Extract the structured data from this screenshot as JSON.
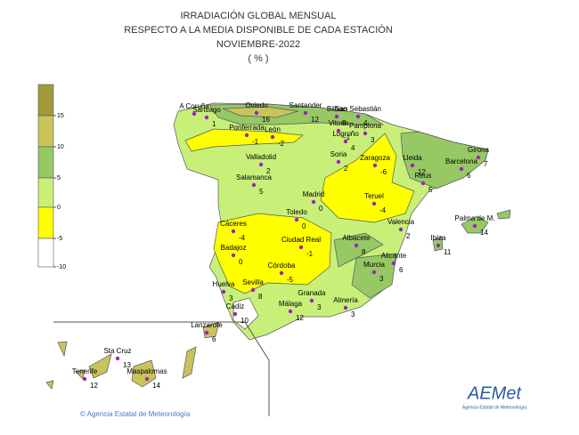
{
  "title": [
    "IRRADIACIÓN GLOBAL MENSUAL",
    "RESPECTO A LA MEDIA DISPONIBLE DE CADA ESTACIÓN",
    "NOVIEMBRE-2022",
    "( % )"
  ],
  "legend": {
    "ticks": [
      15,
      10,
      5,
      0,
      -5,
      -10
    ]
  },
  "stations": [
    {
      "name": "A Coruña"
    },
    {
      "name": "Santiago",
      "value": 1
    },
    {
      "name": "Oviedo",
      "value": 16
    },
    {
      "name": "Santander",
      "value": 12
    },
    {
      "name": "Bilbao",
      "value": 8
    },
    {
      "name": "San Sebastián",
      "value": 4
    },
    {
      "name": "Vitoria",
      "value": -1
    },
    {
      "name": "Pamplona",
      "value": 3
    },
    {
      "name": "Logroño",
      "value": 4
    },
    {
      "name": "Ponferrada",
      "value": -1
    },
    {
      "name": "León",
      "value": -2
    },
    {
      "name": "Valladolid",
      "value": 2
    },
    {
      "name": "Soria",
      "value": 2
    },
    {
      "name": "Zaragoza",
      "value": -6
    },
    {
      "name": "Lleida",
      "value": 12
    },
    {
      "name": "Girona",
      "value": 7
    },
    {
      "name": "Barcelona",
      "value": 6
    },
    {
      "name": "Reus",
      "value": 5
    },
    {
      "name": "Salamanca",
      "value": 5
    },
    {
      "name": "Madrid",
      "value": 0
    },
    {
      "name": "Teruel",
      "value": -4
    },
    {
      "name": "Toledo",
      "value": 0
    },
    {
      "name": "Cáceres",
      "value": -4
    },
    {
      "name": "Badajoz",
      "value": 0
    },
    {
      "name": "Ciudad Real",
      "value": -1
    },
    {
      "name": "Albacete",
      "value": 8
    },
    {
      "name": "Valencia",
      "value": 2
    },
    {
      "name": "Palma de M.",
      "value": 14
    },
    {
      "name": "Ibiza",
      "value": 11
    },
    {
      "name": "Alicante",
      "value": 6
    },
    {
      "name": "Murcia",
      "value": 3
    },
    {
      "name": "Córdoba",
      "value": -5
    },
    {
      "name": "Sevilla",
      "value": 8
    },
    {
      "name": "Huelva",
      "value": 3
    },
    {
      "name": "Granada",
      "value": 3
    },
    {
      "name": "Almería",
      "value": 3
    },
    {
      "name": "Málaga",
      "value": 12
    },
    {
      "name": "Cádiz",
      "value": 10
    },
    {
      "name": "Lanzarote",
      "value": 6
    },
    {
      "name": "Sta Cruz",
      "value": 13
    },
    {
      "name": "Tenerife",
      "value": 12
    },
    {
      "name": "Maspalomas",
      "value": 14
    }
  ],
  "footer": "© Agencia Estatal de Meteorología",
  "logo": "AEMet",
  "logo_sub": "Agencia Estatal de Meteorología"
}
